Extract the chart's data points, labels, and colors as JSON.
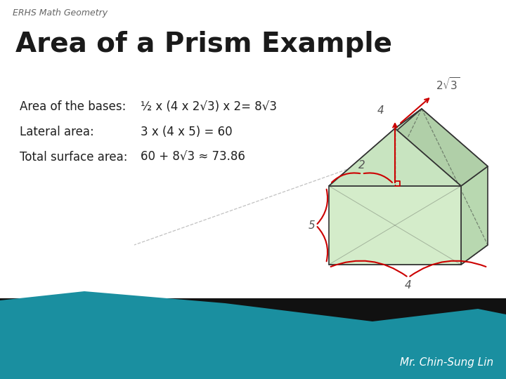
{
  "title": "Area of a Prism Example",
  "subtitle": "ERHS Math Geometry",
  "line1_label": "Area of the bases:",
  "line1_value": "½ x (4 x 2√3) x 2= 8√3",
  "line2_label": "Lateral area:",
  "line2_value": "3 x (4 x 5) = 60",
  "line3_label": "Total surface area:",
  "line3_value": "60 + 8√3 ≈ 73.86",
  "author": "Mr. Chin-Sung Lin",
  "bg_color": "#ffffff",
  "title_color": "#1f1f1f",
  "text_color": "#1f1f1f",
  "subtitle_color": "#666666",
  "accent_color": "#cc0000",
  "prism_edge": "#333333",
  "footer_teal": "#1a8fa0",
  "footer_dark": "#111111"
}
